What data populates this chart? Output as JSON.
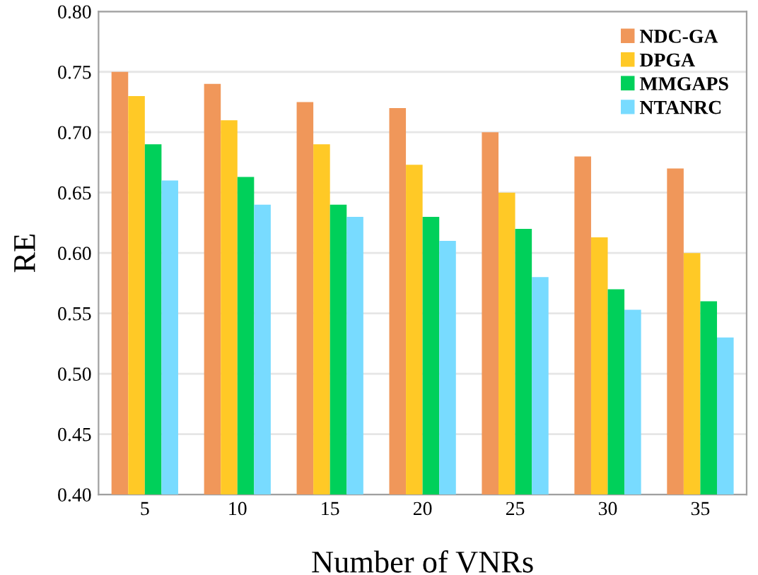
{
  "chart_data": {
    "type": "bar",
    "xlabel": "Number of VNRs",
    "ylabel": "RE",
    "categories": [
      "5",
      "10",
      "15",
      "20",
      "25",
      "30",
      "35"
    ],
    "series": [
      {
        "name": "NDC-GA",
        "color": "#f0975a",
        "values": [
          0.75,
          0.74,
          0.725,
          0.72,
          0.7,
          0.68,
          0.67
        ]
      },
      {
        "name": "DPGA",
        "color": "#ffc926",
        "values": [
          0.73,
          0.71,
          0.69,
          0.673,
          0.65,
          0.613,
          0.6
        ]
      },
      {
        "name": "MMGAPS",
        "color": "#00d05a",
        "values": [
          0.69,
          0.663,
          0.64,
          0.63,
          0.62,
          0.57,
          0.56
        ]
      },
      {
        "name": "NTANRC",
        "color": "#78dbff",
        "values": [
          0.66,
          0.64,
          0.63,
          0.61,
          0.58,
          0.553,
          0.53
        ]
      }
    ],
    "ylim": [
      0.4,
      0.8
    ],
    "yticks": [
      {
        "value": 0.4,
        "label": "0.40"
      },
      {
        "value": 0.45,
        "label": "0.45"
      },
      {
        "value": 0.5,
        "label": "0.50"
      },
      {
        "value": 0.55,
        "label": "0.55"
      },
      {
        "value": 0.6,
        "label": "0.60"
      },
      {
        "value": 0.65,
        "label": "0.65"
      },
      {
        "value": 0.7,
        "label": "0.70"
      },
      {
        "value": 0.75,
        "label": "0.75"
      },
      {
        "value": 0.8,
        "label": "0.80"
      }
    ],
    "grid": "y",
    "legend": "top right"
  }
}
